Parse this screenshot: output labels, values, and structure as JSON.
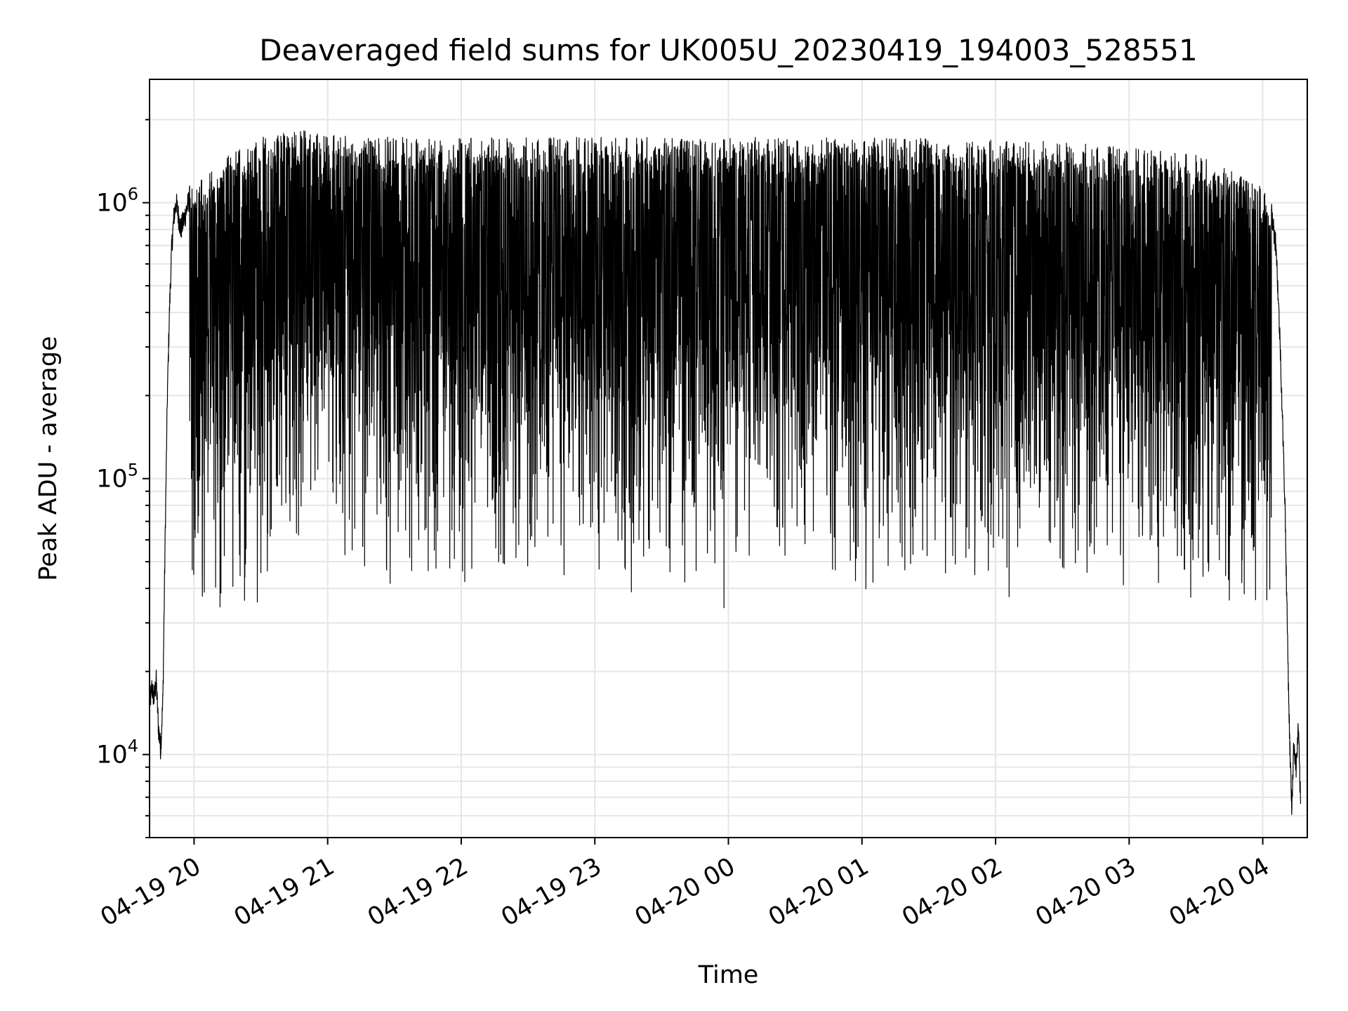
{
  "chart_data": {
    "type": "line",
    "title": "Deaveraged field sums for UK005U_20230419_194003_528551",
    "xlabel": "Time",
    "ylabel": "Peak ADU - average",
    "y_scale": "log",
    "ylim": [
      5000,
      2800000
    ],
    "xlim": [
      "2023-04-19 19:40",
      "2023-04-20 04:20"
    ],
    "grid": true,
    "line_color": "#000000",
    "grid_color": "#e6e6e6",
    "x_ticks": [
      {
        "value": "2023-04-19 20:00",
        "label": "04-19 20"
      },
      {
        "value": "2023-04-19 21:00",
        "label": "04-19 21"
      },
      {
        "value": "2023-04-19 22:00",
        "label": "04-19 22"
      },
      {
        "value": "2023-04-19 23:00",
        "label": "04-19 23"
      },
      {
        "value": "2023-04-20 00:00",
        "label": "04-20 00"
      },
      {
        "value": "2023-04-20 01:00",
        "label": "04-20 01"
      },
      {
        "value": "2023-04-20 02:00",
        "label": "04-20 02"
      },
      {
        "value": "2023-04-20 03:00",
        "label": "04-20 03"
      },
      {
        "value": "2023-04-20 04:00",
        "label": "04-20 04"
      }
    ],
    "y_ticks": [
      {
        "value": 10000,
        "base": "10",
        "exp": "4"
      },
      {
        "value": 100000,
        "base": "10",
        "exp": "5"
      },
      {
        "value": 1000000,
        "base": "10",
        "exp": "6"
      }
    ],
    "series": [
      {
        "values": [
          [
            "2023-04-19 19:40",
            15000
          ],
          [
            "2023-04-19 19:41",
            17500
          ],
          [
            "2023-04-19 19:42",
            16000
          ],
          [
            "2023-04-19 19:43",
            18500
          ],
          [
            "2023-04-19 19:44",
            12500
          ],
          [
            "2023-04-19 19:45",
            10500
          ],
          [
            "2023-04-19 19:46",
            16000
          ],
          [
            "2023-04-19 19:47",
            60000
          ],
          [
            "2023-04-19 19:48",
            200000
          ],
          [
            "2023-04-19 19:49",
            420000
          ],
          [
            "2023-04-19 19:50",
            700000
          ],
          [
            "2023-04-19 19:51",
            900000
          ],
          [
            "2023-04-19 19:52",
            1000000
          ],
          [
            "2023-04-19 19:54",
            800000
          ],
          [
            "2023-04-19 19:56",
            900000
          ],
          [
            "2023-04-19 19:58",
            1050000
          ],
          [
            "2023-04-19 20:00",
            1000000
          ],
          [
            "2023-04-19 20:15",
            1300000
          ],
          [
            "2023-04-19 20:30",
            1500000
          ],
          [
            "2023-04-19 20:45",
            1600000
          ],
          [
            "2023-04-19 21:30",
            1500000
          ],
          [
            "2023-04-19 23:00",
            1500000
          ],
          [
            "2023-04-20 01:00",
            1500000
          ],
          [
            "2023-04-20 02:30",
            1450000
          ],
          [
            "2023-04-20 03:30",
            1300000
          ],
          [
            "2023-04-20 03:50",
            1100000
          ],
          [
            "2023-04-20 04:00",
            1000000
          ],
          [
            "2023-04-20 04:04",
            900000
          ],
          [
            "2023-04-20 04:06",
            700000
          ],
          [
            "2023-04-20 04:08",
            280000
          ],
          [
            "2023-04-20 04:10",
            80000
          ],
          [
            "2023-04-20 04:11",
            30000
          ],
          [
            "2023-04-20 04:12",
            12000
          ],
          [
            "2023-04-20 04:13",
            6500
          ],
          [
            "2023-04-20 04:14",
            11000
          ],
          [
            "2023-04-20 04:15",
            9000
          ],
          [
            "2023-04-20 04:16",
            12500
          ],
          [
            "2023-04-20 04:17",
            6500
          ]
        ]
      }
    ]
  }
}
